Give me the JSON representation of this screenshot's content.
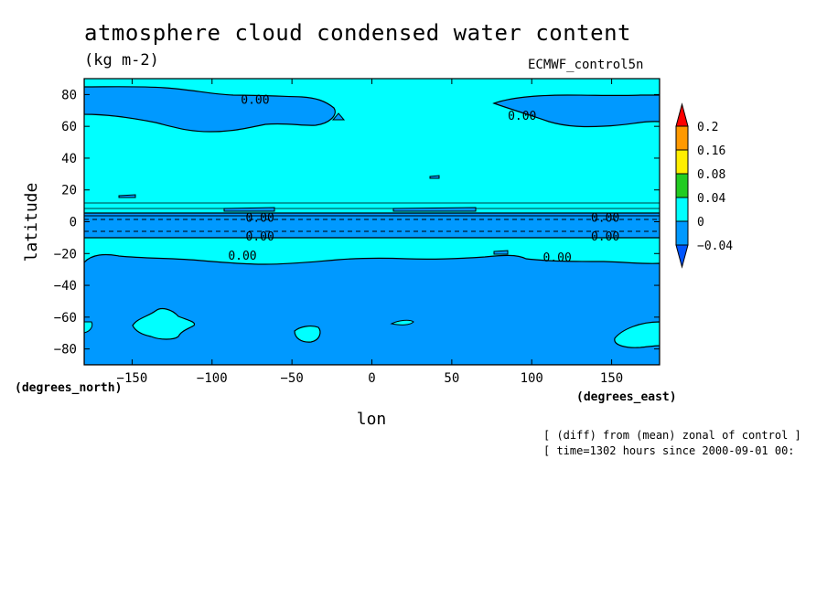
{
  "chart_data": {
    "type": "contour",
    "title": "atmosphere cloud condensed water content",
    "units": "(kg m-2)",
    "model": "ECMWF_control5n",
    "xlabel": "lon",
    "ylabel": "latitude",
    "x_unit": "(degrees_east)",
    "y_unit": "(degrees_north)",
    "xlim": [
      -180,
      180
    ],
    "ylim": [
      -90,
      90
    ],
    "x_ticks": [
      -150,
      -100,
      -50,
      0,
      50,
      100,
      150
    ],
    "y_ticks": [
      80,
      60,
      40,
      20,
      0,
      -20,
      -40,
      -60,
      -80
    ],
    "colorbar": {
      "levels": [
        0.2,
        0.16,
        0.08,
        0.04,
        0,
        -0.04
      ],
      "colors": [
        "#ff0000",
        "#ff9900",
        "#ffee00",
        "#22cc22",
        "#00ffff",
        "#0099ff",
        "#0055ff"
      ]
    },
    "contour_labels": [
      {
        "text": "0.00",
        "lon": -73,
        "lat": 77
      },
      {
        "text": "0.00",
        "lon": 94,
        "lat": 67
      },
      {
        "text": "0.00",
        "lon": -70,
        "lat": 3
      },
      {
        "text": "0.00",
        "lon": 146,
        "lat": 3
      },
      {
        "text": "0.00",
        "lon": -70,
        "lat": -9
      },
      {
        "text": "0.00",
        "lon": 146,
        "lat": -9
      },
      {
        "text": "0.00",
        "lon": -81,
        "lat": -21
      },
      {
        "text": "0.00",
        "lon": 116,
        "lat": -22
      }
    ],
    "notes": [
      "[ (diff) from (mean) zonal of control ]",
      "[ time=1302 hours since 2000-09-01 00:"
    ]
  }
}
